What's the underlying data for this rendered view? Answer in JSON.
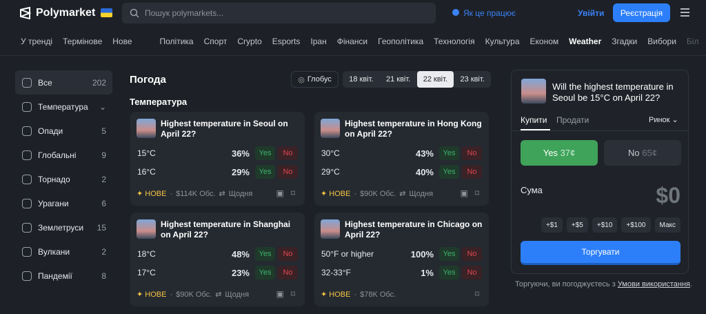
{
  "header": {
    "brand": "Polymarket",
    "search_placeholder": "Пошук polymarkets...",
    "how_it_works": "Як це працює",
    "login": "Увійти",
    "signup": "Реєстрація"
  },
  "nav": [
    "У тренді",
    "Термінове",
    "Нове",
    "Політика",
    "Спорт",
    "Crypto",
    "Esports",
    "Іран",
    "Фінанси",
    "Геополітика",
    "Технологія",
    "Культура",
    "Економ",
    "Weather",
    "Згадки",
    "Вибори",
    "Біл"
  ],
  "sidebar": [
    {
      "label": "Все",
      "count": "202"
    },
    {
      "label": "Температура"
    },
    {
      "label": "Опади",
      "count": "5"
    },
    {
      "label": "Глобальні",
      "count": "9"
    },
    {
      "label": "Торнадо",
      "count": "2"
    },
    {
      "label": "Урагани",
      "count": "6"
    },
    {
      "label": "Землетруси",
      "count": "15"
    },
    {
      "label": "Вулкани",
      "count": "2"
    },
    {
      "label": "Пандемії",
      "count": "8"
    }
  ],
  "main": {
    "title": "Погода",
    "filter": "Глобус",
    "dates": [
      "18 квіт.",
      "21 квіт.",
      "22 квіт.",
      "23 квіт."
    ],
    "section": "Температура",
    "cards": [
      {
        "title": "Highest temperature in Seoul on April 22?",
        "rows": [
          {
            "label": "15°C",
            "pct": "36%",
            "yes": "Yes",
            "no": "No"
          },
          {
            "label": "16°C",
            "pct": "29%",
            "yes": "Yes",
            "no": "No"
          }
        ],
        "tag": "НОВЕ",
        "volume": "$114K Обс.",
        "recurrence": "Щодня"
      },
      {
        "title": "Highest temperature in Hong Kong on April 22?",
        "rows": [
          {
            "label": "30°C",
            "pct": "43%",
            "yes": "Yes",
            "no": "No"
          },
          {
            "label": "29°C",
            "pct": "40%",
            "yes": "Yes",
            "no": "No"
          }
        ],
        "tag": "НОВЕ",
        "volume": "$90K Обс.",
        "recurrence": "Щодня"
      },
      {
        "title": "Highest temperature in Shanghai on April 22?",
        "rows": [
          {
            "label": "18°C",
            "pct": "48%",
            "yes": "Yes",
            "no": "No"
          },
          {
            "label": "17°C",
            "pct": "23%",
            "yes": "Yes",
            "no": "No"
          }
        ],
        "tag": "НОВЕ",
        "volume": "$90K Обс.",
        "recurrence": "Щодня"
      },
      {
        "title": "Highest temperature in Chicago on April 22?",
        "rows": [
          {
            "label": "50°F or higher",
            "pct": "100%",
            "yes": "Yes",
            "no": "No"
          },
          {
            "label": "32-33°F",
            "pct": "1%",
            "yes": "Yes",
            "no": "No"
          }
        ],
        "tag": "НОВЕ",
        "volume": "$78K Обс."
      }
    ]
  },
  "trade": {
    "question": "Will the highest temperature in Seoul be 15°C on April 22?",
    "tabs": [
      "Купити",
      "Продати"
    ],
    "order_type": "Ринок",
    "yes": "Yes",
    "yes_price": "37¢",
    "no": "No",
    "no_price": "65¢",
    "amount_label": "Сума",
    "amount": "$0",
    "chips": [
      "+$1",
      "+$5",
      "+$10",
      "+$100",
      "Макс"
    ],
    "button": "Торгувати",
    "terms_prefix": "Торгуючи, ви погоджуєтесь з ",
    "terms_link": "Умови використання",
    "terms_suffix": "."
  }
}
